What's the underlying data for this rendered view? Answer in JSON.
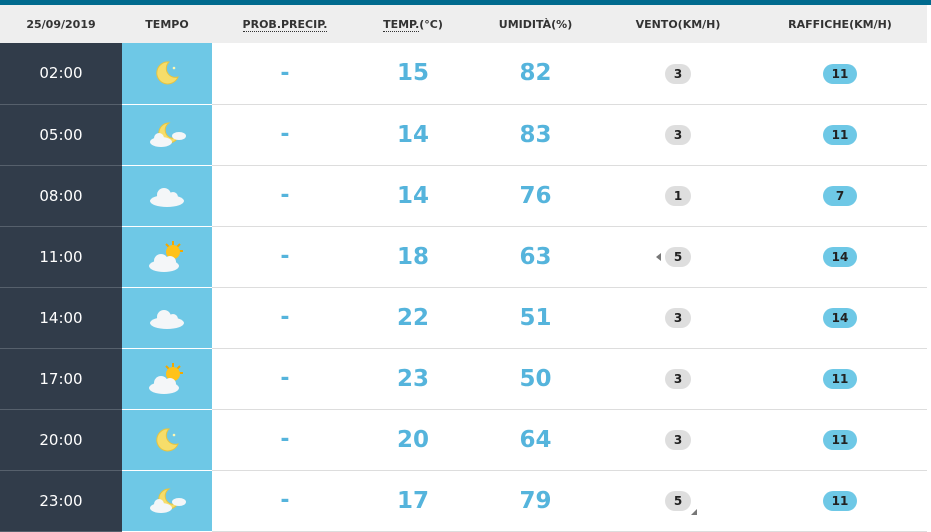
{
  "header": {
    "date": "25/09/2019",
    "weather": "TEMPO",
    "precip": "PROB.PRECIP.",
    "temp": "TEMP.",
    "temp_unit": "(°C)",
    "humidity": "UMIDITÀ(%)",
    "wind": "VENTO(KM/H)",
    "gusts": "RAFFICHE(KM/H)"
  },
  "colors": {
    "accent": "#006a8e",
    "time_bg": "#313c4a",
    "icon_bg": "#6ec8e6",
    "value": "#55b4dc"
  },
  "rows": [
    {
      "time": "02:00",
      "icon": "moon",
      "precip": "-",
      "temp": "15",
      "humidity": "82",
      "wind": "3",
      "gusts": "11",
      "wind_dir": ""
    },
    {
      "time": "05:00",
      "icon": "moon-cloud",
      "precip": "-",
      "temp": "14",
      "humidity": "83",
      "wind": "3",
      "gusts": "11",
      "wind_dir": ""
    },
    {
      "time": "08:00",
      "icon": "cloud",
      "precip": "-",
      "temp": "14",
      "humidity": "76",
      "wind": "1",
      "gusts": "7",
      "wind_dir": ""
    },
    {
      "time": "11:00",
      "icon": "sun-cloud",
      "precip": "-",
      "temp": "18",
      "humidity": "63",
      "wind": "5",
      "gusts": "14",
      "wind_dir": "left"
    },
    {
      "time": "14:00",
      "icon": "cloud",
      "precip": "-",
      "temp": "22",
      "humidity": "51",
      "wind": "3",
      "gusts": "14",
      "wind_dir": ""
    },
    {
      "time": "17:00",
      "icon": "sun-cloud",
      "precip": "-",
      "temp": "23",
      "humidity": "50",
      "wind": "3",
      "gusts": "11",
      "wind_dir": ""
    },
    {
      "time": "20:00",
      "icon": "moon",
      "precip": "-",
      "temp": "20",
      "humidity": "64",
      "wind": "3",
      "gusts": "11",
      "wind_dir": ""
    },
    {
      "time": "23:00",
      "icon": "moon-cloud",
      "precip": "-",
      "temp": "17",
      "humidity": "79",
      "wind": "5",
      "gusts": "11",
      "wind_dir": "bottom-right"
    }
  ]
}
